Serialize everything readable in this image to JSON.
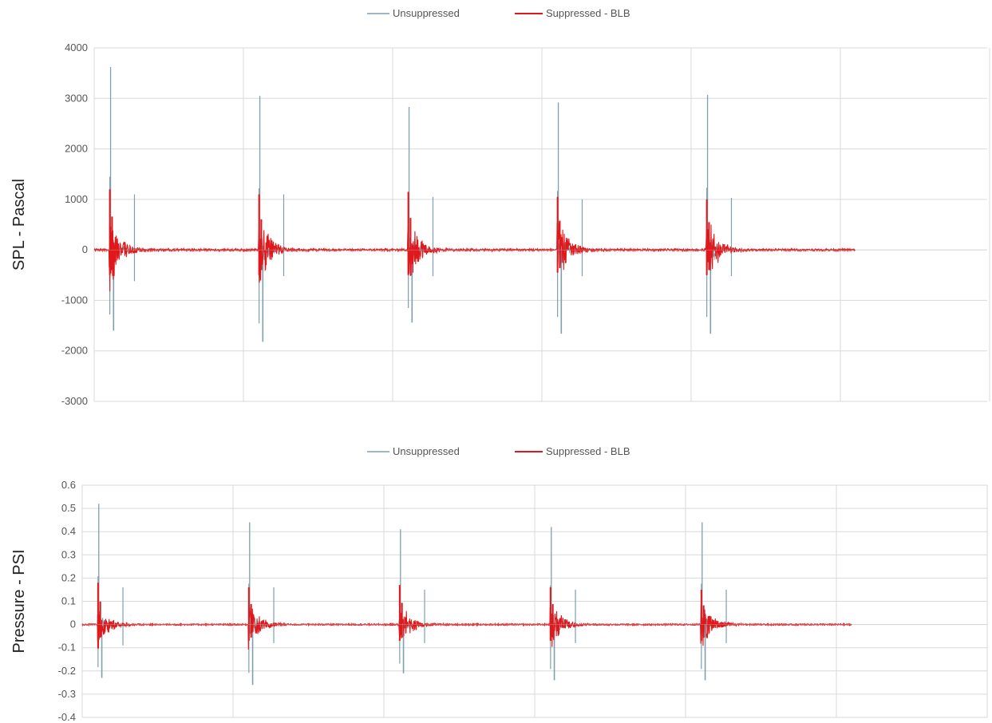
{
  "chart_data": [
    {
      "type": "line",
      "ylabel": "SPL - Pascal",
      "ylim": [
        -3000,
        4000
      ],
      "yticks": [
        4000,
        3000,
        2000,
        1000,
        0,
        -1000,
        -2000,
        -3000
      ],
      "grid": true,
      "legend_position": "top-center",
      "event_x": [
        0.1,
        1.1,
        2.1,
        3.1,
        4.1
      ],
      "x_end": 5.1,
      "series": [
        {
          "name": "Unsuppressed",
          "color": "#7f9fae",
          "peaks": [
            {
              "max": 3620,
              "min": -1600,
              "secondary_max": 1100,
              "secondary_min": -620
            },
            {
              "max": 3050,
              "min": -1820,
              "secondary_max": 1100,
              "secondary_min": -520
            },
            {
              "max": 2830,
              "min": -1440,
              "secondary_max": 1050,
              "secondary_min": -520
            },
            {
              "max": 2920,
              "min": -1660,
              "secondary_max": 1000,
              "secondary_min": -520
            },
            {
              "max": 3070,
              "min": -1660,
              "secondary_max": 1030,
              "secondary_min": -520
            }
          ]
        },
        {
          "name": "Suppressed - BLB",
          "color": "#e0181b",
          "peaks": [
            {
              "max": 1200,
              "min": -500
            },
            {
              "max": 1100,
              "min": -500
            },
            {
              "max": 1150,
              "min": -500
            },
            {
              "max": 1050,
              "min": -450
            },
            {
              "max": 1000,
              "min": -500
            }
          ]
        }
      ]
    },
    {
      "type": "line",
      "ylabel": "Pressure - PSI",
      "ylim": [
        -0.4,
        0.6
      ],
      "yticks": [
        0.6,
        0.5,
        0.4,
        0.3,
        0.2,
        0.1,
        0,
        -0.1,
        -0.2,
        -0.3,
        -0.4
      ],
      "grid": true,
      "legend_position": "top-center",
      "event_x": [
        0.1,
        1.1,
        2.1,
        3.1,
        4.1
      ],
      "x_end": 5.1,
      "series": [
        {
          "name": "Unsuppressed",
          "color": "#7f9fae",
          "peaks": [
            {
              "max": 0.52,
              "min": -0.23,
              "secondary_max": 0.16,
              "secondary_min": -0.09
            },
            {
              "max": 0.44,
              "min": -0.26,
              "secondary_max": 0.16,
              "secondary_min": -0.08
            },
            {
              "max": 0.41,
              "min": -0.21,
              "secondary_max": 0.15,
              "secondary_min": -0.08
            },
            {
              "max": 0.42,
              "min": -0.24,
              "secondary_max": 0.15,
              "secondary_min": -0.08
            },
            {
              "max": 0.44,
              "min": -0.24,
              "secondary_max": 0.15,
              "secondary_min": -0.08
            }
          ]
        },
        {
          "name": "Suppressed - BLB",
          "color": "#e0181b",
          "peaks": [
            {
              "max": 0.18,
              "min": -0.07
            },
            {
              "max": 0.16,
              "min": -0.07
            },
            {
              "max": 0.17,
              "min": -0.07
            },
            {
              "max": 0.16,
              "min": -0.07
            },
            {
              "max": 0.15,
              "min": -0.07
            }
          ]
        }
      ]
    }
  ]
}
